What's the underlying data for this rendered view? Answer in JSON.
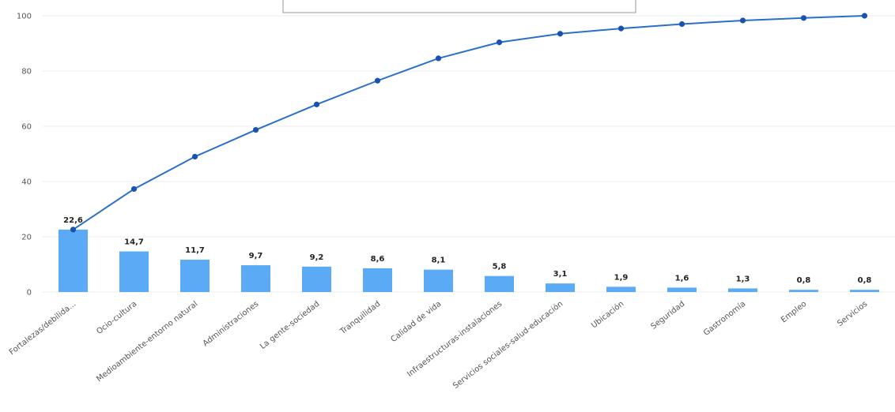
{
  "chart_data": {
    "type": "bar",
    "categories": [
      "Fortalezas/debilida...",
      "Ocio-cultura",
      "Medioambiente-entorno natural",
      "Administraciones",
      "La gente-sociedad",
      "Tranquilidad",
      "Calidad de vida",
      "Infraestructuras-instalaciones",
      "Servicios sociales-salud-educación",
      "Ubicación",
      "Seguridad",
      "Gastronomía",
      "Empleo",
      "Servicios"
    ],
    "series": [
      {
        "type": "bar",
        "values": [
          22.6,
          14.7,
          11.7,
          9.7,
          9.2,
          8.6,
          8.1,
          5.8,
          3.1,
          1.9,
          1.6,
          1.3,
          0.8,
          0.8
        ],
        "value_labels": [
          "22,6",
          "14,7",
          "11,7",
          "9,7",
          "9,2",
          "8,6",
          "8,1",
          "5,8",
          "3,1",
          "1,9",
          "1,6",
          "1,3",
          "0,8",
          "0,8"
        ],
        "color": "#5aaaf5"
      },
      {
        "type": "line",
        "values": [
          22.6,
          37.3,
          49.0,
          58.7,
          67.9,
          76.5,
          84.6,
          90.4,
          93.5,
          95.4,
          97.0,
          98.3,
          99.2,
          100.0
        ],
        "color": "#2a6fc9",
        "marker_color": "#1a52b3"
      }
    ],
    "y_ticks": [
      "0",
      "20",
      "40",
      "60",
      "80",
      "100"
    ],
    "ylim": [
      0,
      100
    ],
    "grid": true,
    "legend": "none"
  }
}
